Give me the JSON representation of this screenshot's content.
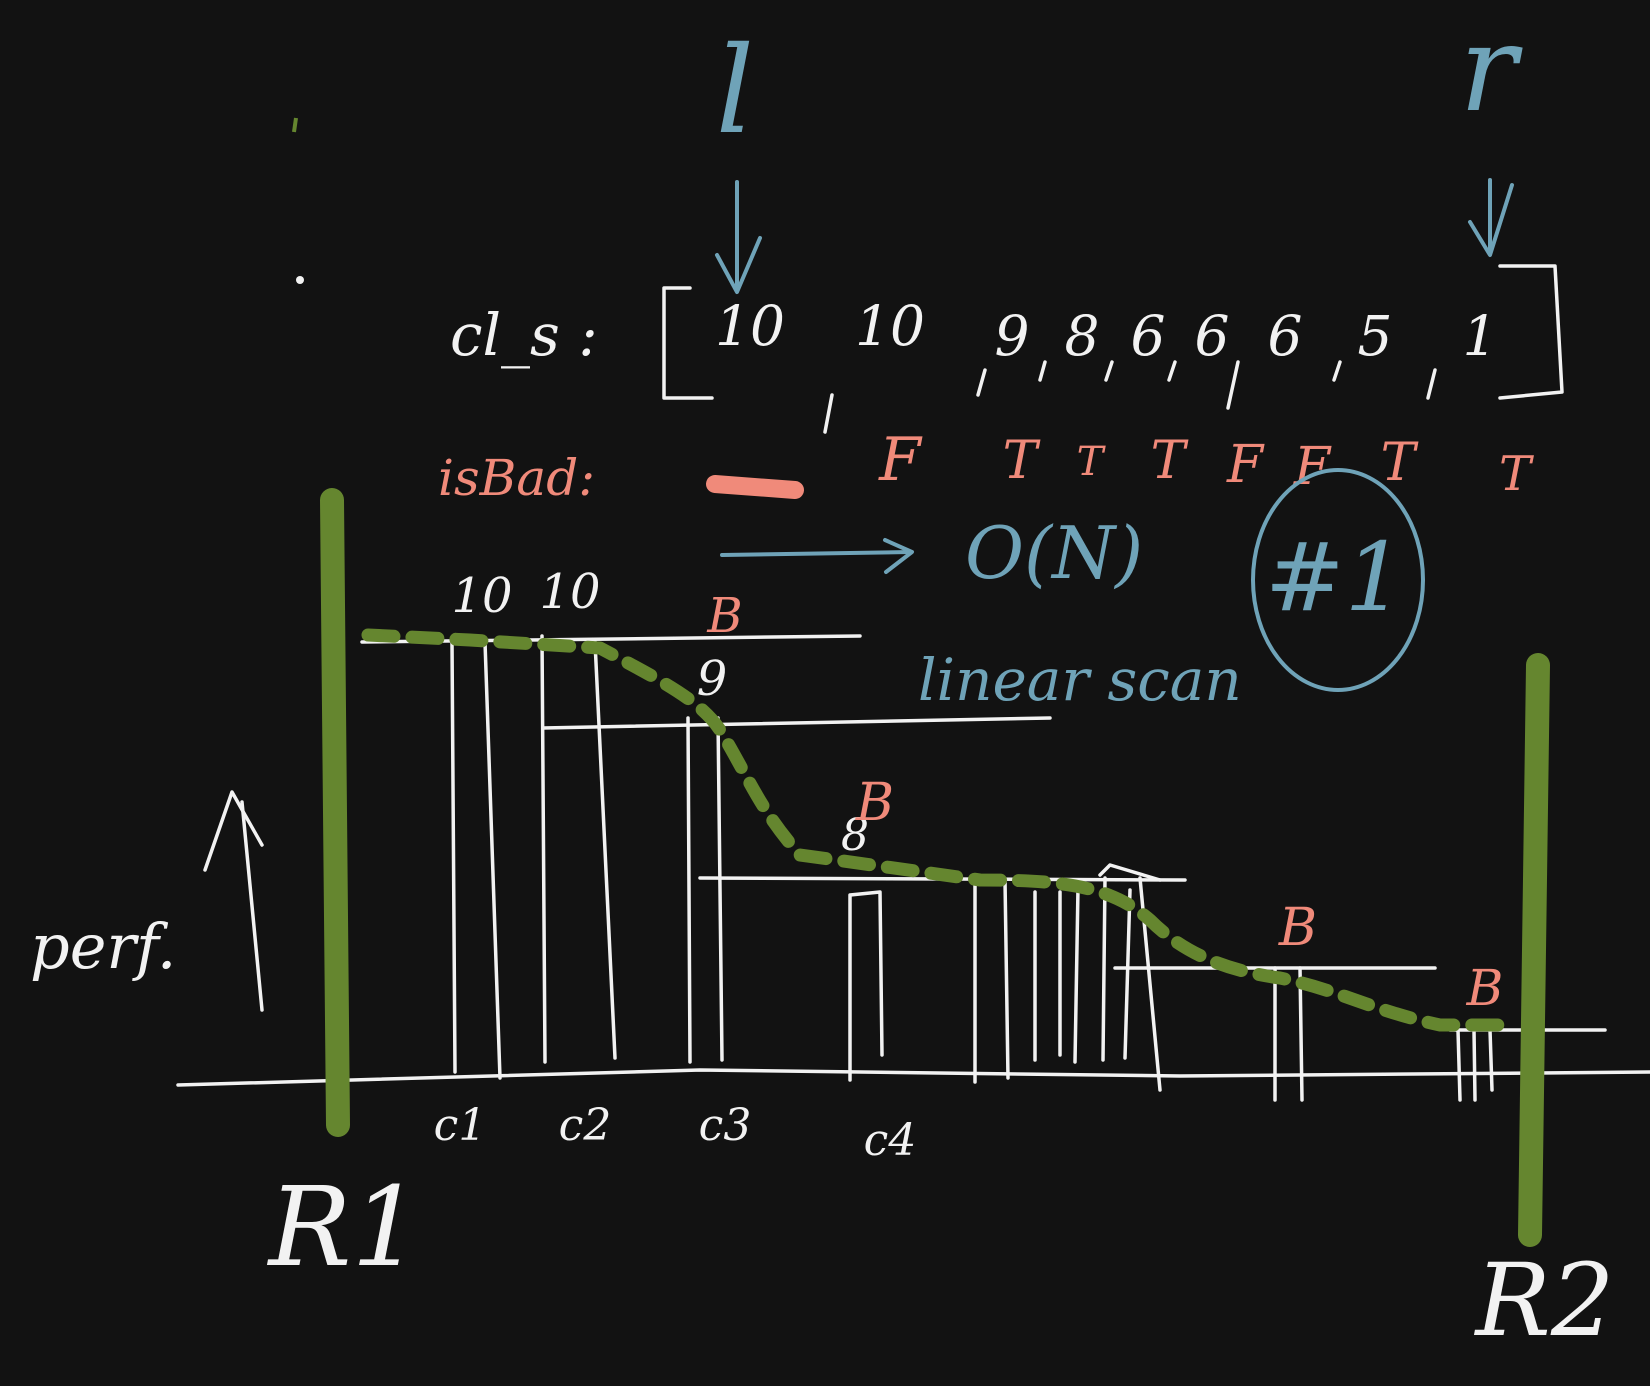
{
  "pointers": {
    "left": "l",
    "right": "r"
  },
  "array": {
    "label": "cl_s :",
    "values": [
      "10",
      "10",
      "9",
      "8",
      "6",
      "6",
      "6",
      "5",
      "1"
    ]
  },
  "is_bad": {
    "label": "isBad:",
    "flags": [
      "F",
      "T",
      "T",
      "T",
      "F",
      "F",
      "T",
      "T"
    ]
  },
  "scan": {
    "complexity": "O(N)",
    "method": "linear scan",
    "marker": "#1"
  },
  "axis": {
    "y_label": "perf."
  },
  "bar_labels": [
    "10",
    "10",
    "9",
    "8"
  ],
  "bad_marks": [
    "B",
    "B",
    "B",
    "B"
  ],
  "commits": [
    "c1",
    "c2",
    "c3",
    "c4"
  ],
  "releases": [
    "R1",
    "R2"
  ],
  "colors": {
    "background": "#121212",
    "ink": "#f2f2f2",
    "pointer_blue": "#6fa3b8",
    "bad_red": "#f08a7a",
    "release_green": "#65862f"
  }
}
